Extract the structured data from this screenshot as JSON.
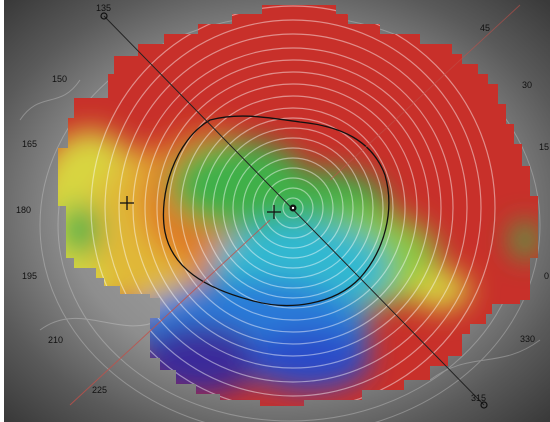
{
  "scale_labels": {
    "a0": "0",
    "a15": "15",
    "a30": "30",
    "a45": "45",
    "a135": "135",
    "a150": "150",
    "a165": "165",
    "a180": "180",
    "a195": "195",
    "a210": "210",
    "a225": "225",
    "a315": "315",
    "a330": "330"
  },
  "colors": {
    "background_gray": "#8a8a8a",
    "map_red": "#c8302a",
    "map_orange": "#e07a28",
    "map_yellow": "#d8d640",
    "map_green": "#3fb04a",
    "map_cyan": "#30b8d0",
    "map_blue": "#2a4cc8",
    "map_indigo": "#3a2a9a",
    "axis_line": "#222222",
    "secondary_axis": "#c0504a"
  },
  "image": {
    "subject": "corneal topography map overlaid on eye photograph with placido rings"
  }
}
